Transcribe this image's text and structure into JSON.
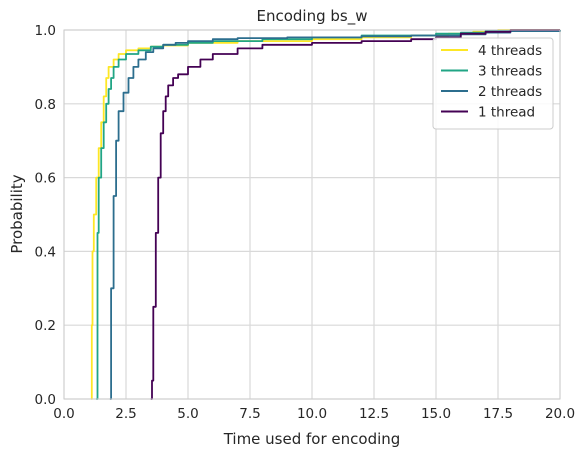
{
  "chart_data": {
    "type": "line",
    "title": "Encoding bs_w",
    "xlabel": "Time used for encoding",
    "ylabel": "Probability",
    "xlim": [
      0,
      20
    ],
    "ylim": [
      0,
      1
    ],
    "xticks": [
      0,
      2.5,
      5,
      7.5,
      10,
      12.5,
      15,
      17.5,
      20
    ],
    "xtick_labels": [
      "0.0",
      "2.5",
      "5.0",
      "7.5",
      "10.0",
      "12.5",
      "15.0",
      "17.5",
      "20.0"
    ],
    "yticks": [
      0,
      0.2,
      0.4,
      0.6,
      0.8,
      1.0
    ],
    "ytick_labels": [
      "0.0",
      "0.2",
      "0.4",
      "0.6",
      "0.8",
      "1.0"
    ],
    "grid": true,
    "legend_position": "top-right",
    "series": [
      {
        "name": "4 threads",
        "color": "#fde725",
        "x": [
          1.1,
          1.12,
          1.15,
          1.2,
          1.3,
          1.4,
          1.5,
          1.6,
          1.7,
          1.8,
          2.0,
          2.2,
          2.5,
          3.0,
          3.5,
          4.0,
          5.0,
          7.0,
          10.0,
          12.0,
          14.0,
          15.5,
          16.5,
          17.5,
          20.0
        ],
        "y": [
          0.0,
          0.2,
          0.4,
          0.5,
          0.6,
          0.68,
          0.75,
          0.82,
          0.87,
          0.9,
          0.92,
          0.935,
          0.945,
          0.95,
          0.955,
          0.958,
          0.965,
          0.97,
          0.975,
          0.98,
          0.985,
          0.99,
          0.995,
          1.0,
          1.0
        ]
      },
      {
        "name": "3 threads",
        "color": "#21a585",
        "x": [
          1.3,
          1.35,
          1.4,
          1.5,
          1.6,
          1.7,
          1.8,
          1.9,
          2.0,
          2.2,
          2.5,
          3.0,
          3.5,
          4.0,
          5.0,
          6.0,
          8.0,
          10.0,
          12.0,
          14.0,
          15.0,
          16.0,
          17.0,
          20.0
        ],
        "y": [
          0.0,
          0.45,
          0.6,
          0.68,
          0.75,
          0.8,
          0.84,
          0.87,
          0.9,
          0.92,
          0.935,
          0.945,
          0.955,
          0.96,
          0.965,
          0.97,
          0.975,
          0.98,
          0.985,
          0.985,
          0.99,
          0.993,
          0.997,
          1.0
        ]
      },
      {
        "name": "2 threads",
        "color": "#2c6e8e",
        "x": [
          1.85,
          1.9,
          2.0,
          2.1,
          2.2,
          2.4,
          2.6,
          2.8,
          3.0,
          3.3,
          3.6,
          4.0,
          4.5,
          5.0,
          6.0,
          7.0,
          9.0,
          12.0,
          14.0,
          16.0,
          17.0,
          18.0,
          20.0
        ],
        "y": [
          0.0,
          0.3,
          0.55,
          0.7,
          0.78,
          0.83,
          0.87,
          0.9,
          0.92,
          0.94,
          0.95,
          0.96,
          0.965,
          0.97,
          0.975,
          0.978,
          0.98,
          0.983,
          0.985,
          0.988,
          0.993,
          0.997,
          1.0
        ]
      },
      {
        "name": "1 thread",
        "color": "#440154",
        "x": [
          3.5,
          3.55,
          3.6,
          3.7,
          3.8,
          3.9,
          4.0,
          4.1,
          4.2,
          4.4,
          4.6,
          5.0,
          5.5,
          6.0,
          7.0,
          8.0,
          10.0,
          12.0,
          14.0,
          15.0,
          16.0,
          17.0,
          18.0,
          20.0
        ],
        "y": [
          0.0,
          0.05,
          0.25,
          0.45,
          0.6,
          0.72,
          0.78,
          0.82,
          0.85,
          0.87,
          0.88,
          0.9,
          0.92,
          0.935,
          0.95,
          0.96,
          0.965,
          0.97,
          0.975,
          0.98,
          0.99,
          0.995,
          1.0,
          1.0
        ]
      }
    ]
  }
}
